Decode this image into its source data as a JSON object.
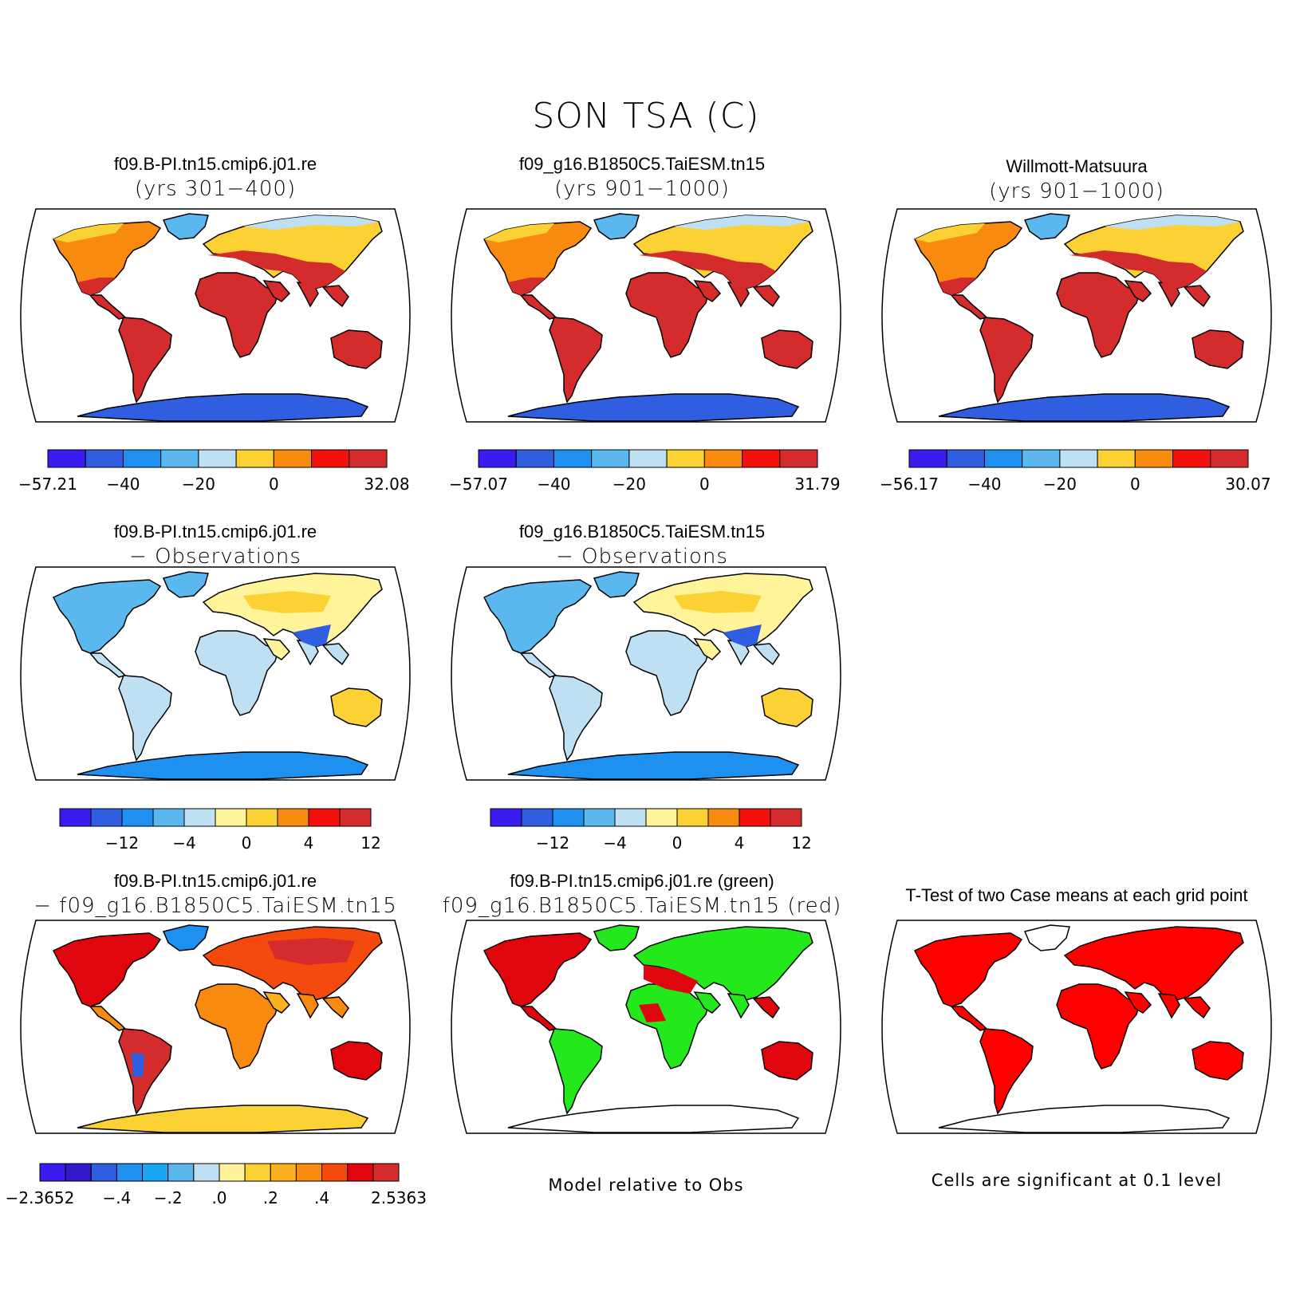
{
  "title": "SON TSA (C)",
  "palettes": {
    "temp": [
      "#3a1bf0",
      "#2f5fe0",
      "#1e90f0",
      "#5ab8ee",
      "#bfe0f2",
      "#fbd134",
      "#f98a10",
      "#f5100e",
      "#d42b2c"
    ],
    "diff": [
      "#3a1bf0",
      "#2f5fe0",
      "#1e90f0",
      "#5ab8ee",
      "#bfe0f2",
      "#fff49a",
      "#fbd134",
      "#f98a10",
      "#f5100e",
      "#d42b2c"
    ],
    "bias": [
      "#3a1bf0",
      "#3219c8",
      "#2f5fe0",
      "#1e90f0",
      "#19a6f2",
      "#5ab8ee",
      "#bfe0f2",
      "#fff49a",
      "#fbd134",
      "#fbb020",
      "#f98a10",
      "#f54a0e",
      "#e0060e",
      "#d42b2c"
    ]
  },
  "panels": [
    {
      "title_line1": "f09.B-PI.tn15.cmip6.j01.re",
      "title_line2": "(yrs 301−400)",
      "map_style": "temp",
      "colorbar": {
        "palette": "temp",
        "labels": [
          "−57.21",
          "−40",
          "−20",
          "0",
          "32.08"
        ]
      }
    },
    {
      "title_line1": "f09_g16.B1850C5.TaiESM.tn15",
      "title_line2": "(yrs 901−1000)",
      "map_style": "temp",
      "colorbar": {
        "palette": "temp",
        "labels": [
          "−57.07",
          "−40",
          "−20",
          "0",
          "31.79"
        ]
      }
    },
    {
      "title_line1": "Willmott-Matsuura",
      "title_line2": "(yrs 901−1000)",
      "map_style": "temp",
      "colorbar": {
        "palette": "temp",
        "labels": [
          "−56.17",
          "−40",
          "−20",
          "0",
          "30.07"
        ]
      }
    },
    {
      "title_line1": "f09.B-PI.tn15.cmip6.j01.re",
      "title_line2": "− Observations",
      "map_style": "diff",
      "colorbar": {
        "palette": "diff",
        "labels": [
          "−12",
          "−4",
          "0",
          "4",
          "12"
        ]
      }
    },
    {
      "title_line1": "f09_g16.B1850C5.TaiESM.tn15",
      "title_line2": "− Observations",
      "map_style": "diff",
      "colorbar": {
        "palette": "diff",
        "labels": [
          "−12",
          "−4",
          "0",
          "4",
          "12"
        ]
      }
    },
    {
      "title_line1": "f09.B-PI.tn15.cmip6.j01.re",
      "title_line2": "− f09_g16.B1850C5.TaiESM.tn15",
      "map_style": "bias",
      "colorbar": {
        "palette": "bias",
        "labels": [
          "−2.3652",
          "−.4",
          "−.2",
          ".0",
          ".2",
          ".4",
          "2.5363"
        ]
      }
    },
    {
      "title_line1": "f09.B-PI.tn15.cmip6.j01.re (green)",
      "title_line2": "f09_g16.B1850C5.TaiESM.tn15 (red)",
      "map_style": "greenred",
      "note": "Model relative to Obs"
    },
    {
      "title_line1": "T-Test of two Case means at each grid point",
      "title_line2": "",
      "map_style": "ttest",
      "note": "Cells are significant at 0.1 level"
    }
  ]
}
